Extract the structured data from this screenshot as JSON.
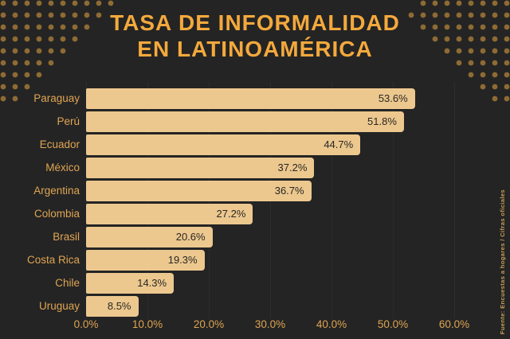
{
  "title": {
    "line1": "TASA DE INFORMALIDAD",
    "line2": "EN LATINOAMÉRICA"
  },
  "source_note": "Fuente:  Encuestas a hogares / Cifras oficiales",
  "colors": {
    "background": "#242424",
    "title_text": "#F4A93C",
    "axis_and_category_text": "#DFA552",
    "bar_fill": "#ECC88F",
    "value_text": "#2A2722",
    "decorative_dots": "#8E6B34",
    "gridline": "#2E2E2E"
  },
  "chart_data": {
    "type": "bar",
    "orientation": "horizontal",
    "title": "TASA DE INFORMALIDAD EN LATINOAMÉRICA",
    "categories": [
      "Paraguay",
      "Perú",
      "Ecuador",
      "México",
      "Argentina",
      "Colombia",
      "Brasil",
      "Costa Rica",
      "Chile",
      "Uruguay"
    ],
    "values": [
      53.6,
      51.8,
      44.7,
      37.2,
      36.7,
      27.2,
      20.6,
      19.3,
      14.3,
      8.5
    ],
    "value_labels": [
      "53.6%",
      "51.8%",
      "44.7%",
      "37.2%",
      "36.7%",
      "27.2%",
      "20.6%",
      "19.3%",
      "14.3%",
      "8.5%"
    ],
    "x_ticks": [
      "0.0%",
      "10.0%",
      "20.0%",
      "30.0%",
      "40.0%",
      "50.0%",
      "60.0%"
    ],
    "xlim": [
      0,
      60
    ],
    "xlabel": "",
    "ylabel": "",
    "grid": true,
    "legend": "none",
    "sort": "descending"
  }
}
